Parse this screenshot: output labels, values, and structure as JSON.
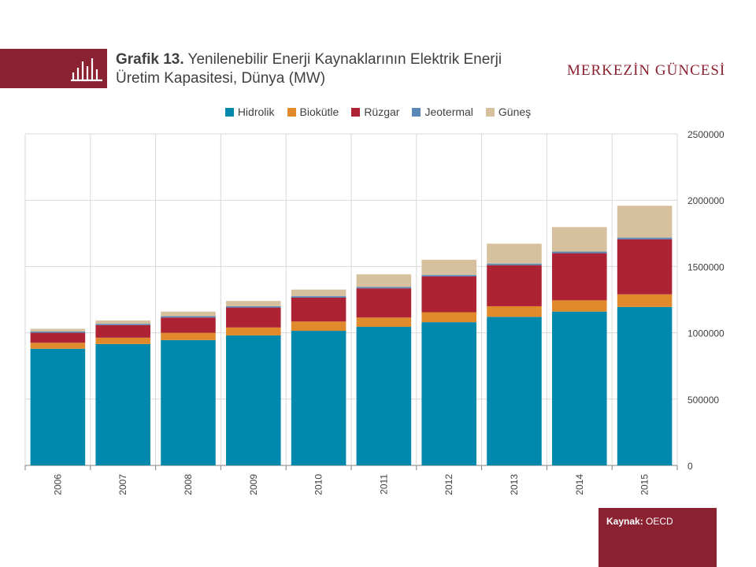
{
  "header": {
    "title_bold": "Grafik 13.",
    "title_rest": " Yenilenebilir Enerji Kaynaklarının Elektrik Enerji Üretim Kapasitesi,  Dünya (MW)",
    "brand": "MERKEZİN GÜNCESİ",
    "icon": "bar-chart-icon"
  },
  "footer": {
    "source_label": "Kaynak:",
    "source_value": " OECD"
  },
  "colors": {
    "accent": "#8b2231",
    "Hidrolik": "#0088ad",
    "Biokütle": "#e08a2c",
    "Rüzgar": "#ad2334",
    "Jeotermal": "#5b86b8",
    "Güneş": "#d6c09d"
  },
  "chart_data": {
    "type": "bar",
    "stacked": true,
    "categories": [
      "2006",
      "2007",
      "2008",
      "2009",
      "2010",
      "2011",
      "2012",
      "2013",
      "2014",
      "2015"
    ],
    "series": [
      {
        "name": "Hidrolik",
        "values": [
          880000,
          915000,
          945000,
          980000,
          1015000,
          1045000,
          1080000,
          1120000,
          1160000,
          1195000
        ]
      },
      {
        "name": "Biokütle",
        "values": [
          45000,
          48000,
          55000,
          60000,
          70000,
          70000,
          75000,
          80000,
          85000,
          95000
        ]
      },
      {
        "name": "Rüzgar",
        "values": [
          75000,
          95000,
          115000,
          150000,
          180000,
          220000,
          270000,
          310000,
          355000,
          415000
        ]
      },
      {
        "name": "Jeotermal",
        "values": [
          10000,
          10000,
          10000,
          10000,
          11000,
          11000,
          11000,
          12000,
          12000,
          13000
        ]
      },
      {
        "name": "Güneş",
        "values": [
          20000,
          25000,
          35000,
          40000,
          50000,
          95000,
          115000,
          150000,
          185000,
          240000
        ]
      }
    ],
    "ylim": [
      0,
      2500000
    ],
    "yticks": [
      "0",
      "500000",
      "1000000",
      "1500000",
      "2000000",
      "2500000"
    ],
    "grid": true,
    "legend_position": "top",
    "xlabel": "",
    "ylabel": ""
  }
}
